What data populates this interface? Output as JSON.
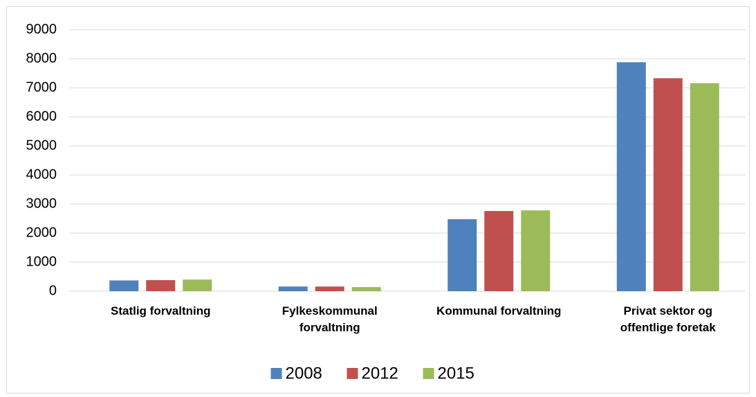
{
  "chart_data": {
    "type": "bar",
    "categories": [
      "Statlig forvaltning",
      "Fylkeskommunal forvaltning",
      "Kommunal forvaltning",
      "Privat sektor og offentlige foretak"
    ],
    "series": [
      {
        "name": "2008",
        "color": "#4f81bd",
        "values": [
          370,
          160,
          2480,
          7880
        ]
      },
      {
        "name": "2012",
        "color": "#c0504d",
        "values": [
          380,
          160,
          2760,
          7330
        ]
      },
      {
        "name": "2015",
        "color": "#9bbb59",
        "values": [
          400,
          140,
          2780,
          7160
        ]
      }
    ],
    "ylim": [
      0,
      9000
    ],
    "yticks": [
      0,
      1000,
      2000,
      3000,
      4000,
      5000,
      6000,
      7000,
      8000,
      9000
    ],
    "grid": true,
    "legend": "bottom"
  }
}
